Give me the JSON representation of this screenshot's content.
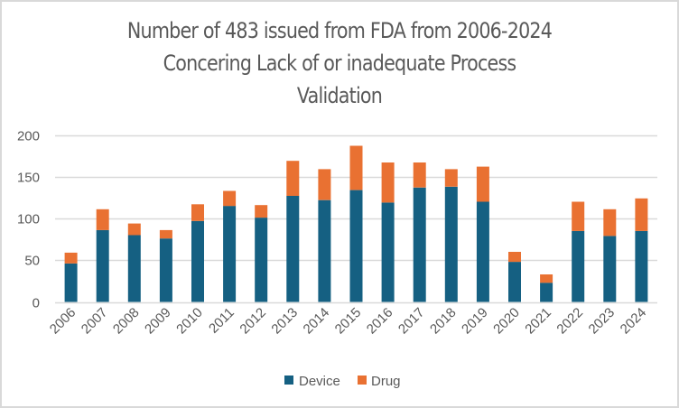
{
  "chart_data": {
    "type": "bar",
    "stacked": true,
    "title": "Number of 483 issued from FDA from 2006-2024 Concering Lack of or inadequate Process Validation",
    "title_lines": [
      "Number of 483 issued from FDA from 2006-2024",
      "Concering Lack of or inadequate Process",
      "Validation"
    ],
    "xlabel": "",
    "ylabel": "",
    "categories": [
      "2006",
      "2007",
      "2008",
      "2009",
      "2010",
      "2011",
      "2012",
      "2013",
      "2014",
      "2015",
      "2016",
      "2017",
      "2018",
      "2019",
      "2020",
      "2021",
      "2022",
      "2023",
      "2024"
    ],
    "series": [
      {
        "name": "Device",
        "color": "#156082",
        "values": [
          46,
          86,
          80,
          76,
          97,
          115,
          101,
          127,
          122,
          134,
          119,
          137,
          138,
          120,
          48,
          23,
          85,
          79,
          85
        ]
      },
      {
        "name": "Drug",
        "color": "#E97132",
        "values": [
          13,
          25,
          14,
          10,
          20,
          18,
          15,
          42,
          37,
          53,
          48,
          30,
          21,
          42,
          12,
          10,
          35,
          32,
          39
        ]
      }
    ],
    "ylim": [
      0,
      200
    ],
    "yticks": [
      0,
      50,
      100,
      150,
      200
    ],
    "grid": true,
    "legend_position": "bottom",
    "xtick_rotation": -45
  }
}
